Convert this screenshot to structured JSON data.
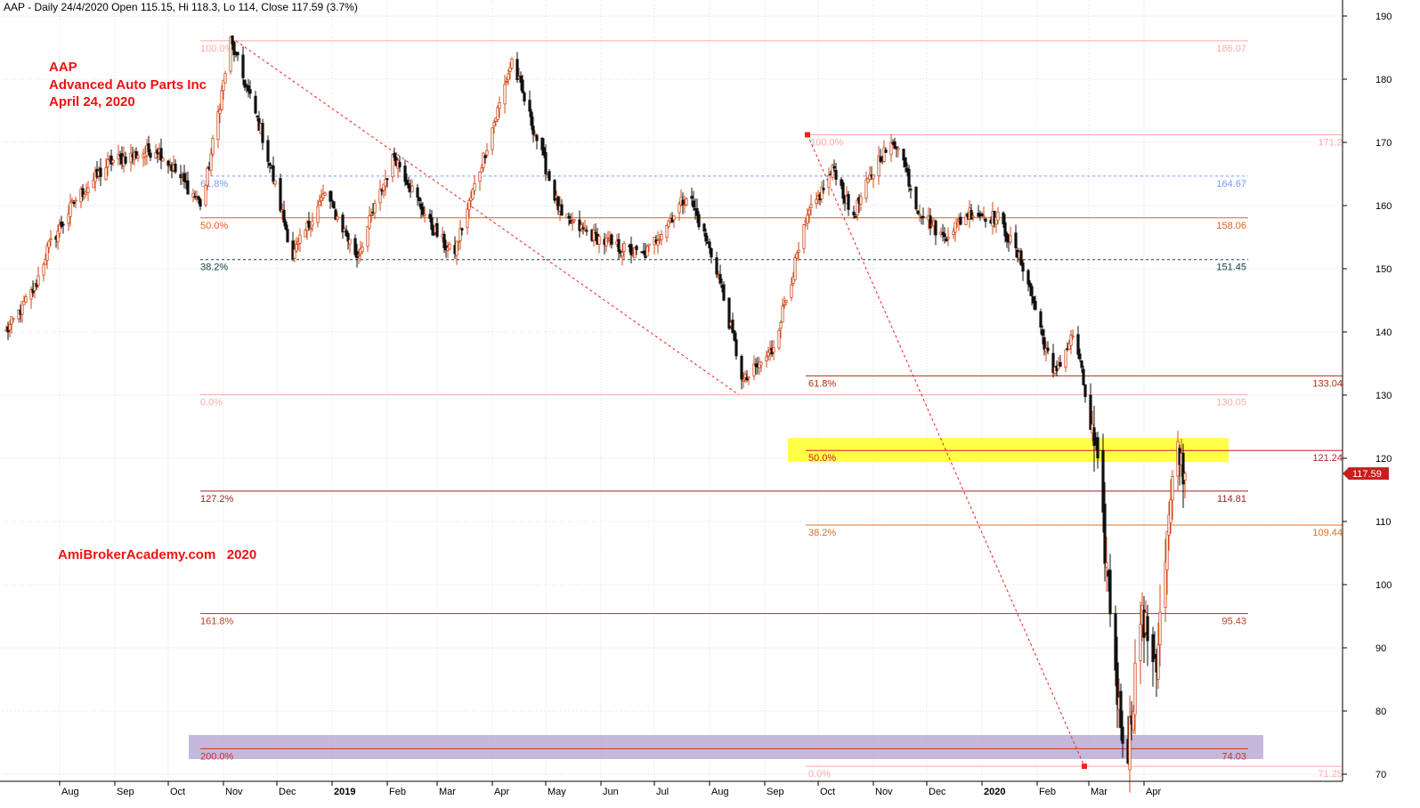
{
  "header": "AAP - Daily 24/4/2020 Open 115.15, Hi 118.3, Lo 114, Close 117.59 (3.7%)",
  "annotations": {
    "symbol": "AAP",
    "company": "Advanced Auto Parts Inc",
    "date": "April 24, 2020",
    "watermark": "AmiBrokerAcademy.com   2020"
  },
  "chart_data": {
    "type": "candlestick",
    "ylim": [
      70,
      192
    ],
    "y_ticks": [
      70,
      80,
      90,
      100,
      110,
      120,
      130,
      140,
      150,
      160,
      170,
      180,
      190
    ],
    "x_ticks": [
      "Aug",
      "Sep",
      "Oct",
      "Nov",
      "Dec",
      "2019",
      "Feb",
      "Mar",
      "Apr",
      "May",
      "Jun",
      "Jul",
      "Aug",
      "Sep",
      "Oct",
      "Nov",
      "Dec",
      "2020",
      "Feb",
      "Mar",
      "Apr"
    ],
    "last_close": "117.59",
    "anchors": [
      {
        "date": "2018-07-02",
        "close": 140
      },
      {
        "date": "2018-07-18",
        "close": 147
      },
      {
        "date": "2018-07-25",
        "close": 153
      },
      {
        "date": "2018-08-10",
        "close": 161
      },
      {
        "date": "2018-08-30",
        "close": 167
      },
      {
        "date": "2018-09-25",
        "close": 169
      },
      {
        "date": "2018-10-20",
        "close": 160
      },
      {
        "date": "2018-11-05",
        "close": 186
      },
      {
        "date": "2018-11-22",
        "close": 172
      },
      {
        "date": "2018-12-10",
        "close": 152
      },
      {
        "date": "2018-12-28",
        "close": 162
      },
      {
        "date": "2019-01-15",
        "close": 152
      },
      {
        "date": "2019-02-05",
        "close": 168
      },
      {
        "date": "2019-02-25",
        "close": 157
      },
      {
        "date": "2019-03-10",
        "close": 152
      },
      {
        "date": "2019-04-05",
        "close": 176
      },
      {
        "date": "2019-04-12",
        "close": 183
      },
      {
        "date": "2019-05-10",
        "close": 158
      },
      {
        "date": "2019-06-05",
        "close": 154
      },
      {
        "date": "2019-06-25",
        "close": 152
      },
      {
        "date": "2019-07-20",
        "close": 162
      },
      {
        "date": "2019-08-05",
        "close": 150
      },
      {
        "date": "2019-08-20",
        "close": 132
      },
      {
        "date": "2019-09-05",
        "close": 137
      },
      {
        "date": "2019-09-25",
        "close": 158
      },
      {
        "date": "2019-10-10",
        "close": 166
      },
      {
        "date": "2019-10-20",
        "close": 158
      },
      {
        "date": "2019-11-05",
        "close": 168
      },
      {
        "date": "2019-11-15",
        "close": 170
      },
      {
        "date": "2019-11-25",
        "close": 160
      },
      {
        "date": "2019-12-10",
        "close": 155
      },
      {
        "date": "2019-12-25",
        "close": 159
      },
      {
        "date": "2020-01-10",
        "close": 158
      },
      {
        "date": "2020-01-25",
        "close": 150
      },
      {
        "date": "2020-02-10",
        "close": 133
      },
      {
        "date": "2020-02-22",
        "close": 140
      },
      {
        "date": "2020-03-05",
        "close": 120
      },
      {
        "date": "2020-03-12",
        "close": 100
      },
      {
        "date": "2020-03-18",
        "close": 80
      },
      {
        "date": "2020-03-23",
        "close": 74
      },
      {
        "date": "2020-03-30",
        "close": 95
      },
      {
        "date": "2020-04-08",
        "close": 88
      },
      {
        "date": "2020-04-15",
        "close": 110
      },
      {
        "date": "2020-04-20",
        "close": 121
      },
      {
        "date": "2020-04-24",
        "close": 117.59
      }
    ],
    "levels": [
      {
        "value": 186.07,
        "label": "186.07",
        "pct": "100.0%",
        "color": "#ffaaaa"
      },
      {
        "value": 171.2,
        "label": "171.2",
        "pct": "100.0%",
        "color": "#ffaaaa"
      },
      {
        "value": 164.67,
        "label": "164.67",
        "pct": "61.8%",
        "color": "#7799ff"
      },
      {
        "value": 158.06,
        "label": "158.06",
        "pct": "50.0%",
        "color": "#e06020"
      },
      {
        "value": 151.45,
        "label": "151.45",
        "pct": "38.2%",
        "color": "#104040"
      },
      {
        "value": 133.04,
        "label": "133.04",
        "pct": "61.8%",
        "color": "#b03010"
      },
      {
        "value": 130.05,
        "label": "130.05",
        "pct": "0.0%",
        "color": "#ffaaaa"
      },
      {
        "value": 121.24,
        "label": "121.24",
        "pct": "50.0%",
        "color": "#cc2020"
      },
      {
        "value": 114.81,
        "label": "114.81",
        "pct": "127.2%",
        "color": "#a02020"
      },
      {
        "value": 109.44,
        "label": "109.44",
        "pct": "38.2%",
        "color": "#e07020"
      },
      {
        "value": 95.43,
        "label": "95.43",
        "pct": "161.8%",
        "color": "#c04020"
      },
      {
        "value": 74.03,
        "label": "74.03",
        "pct": "200.0%",
        "color": "#cc3020"
      },
      {
        "value": 71.25,
        "label": "71.25",
        "pct": "0.0%",
        "color": "#ffaaaa"
      }
    ],
    "highlight_color": "#ffff33",
    "band_color": "#b0a0d0"
  }
}
